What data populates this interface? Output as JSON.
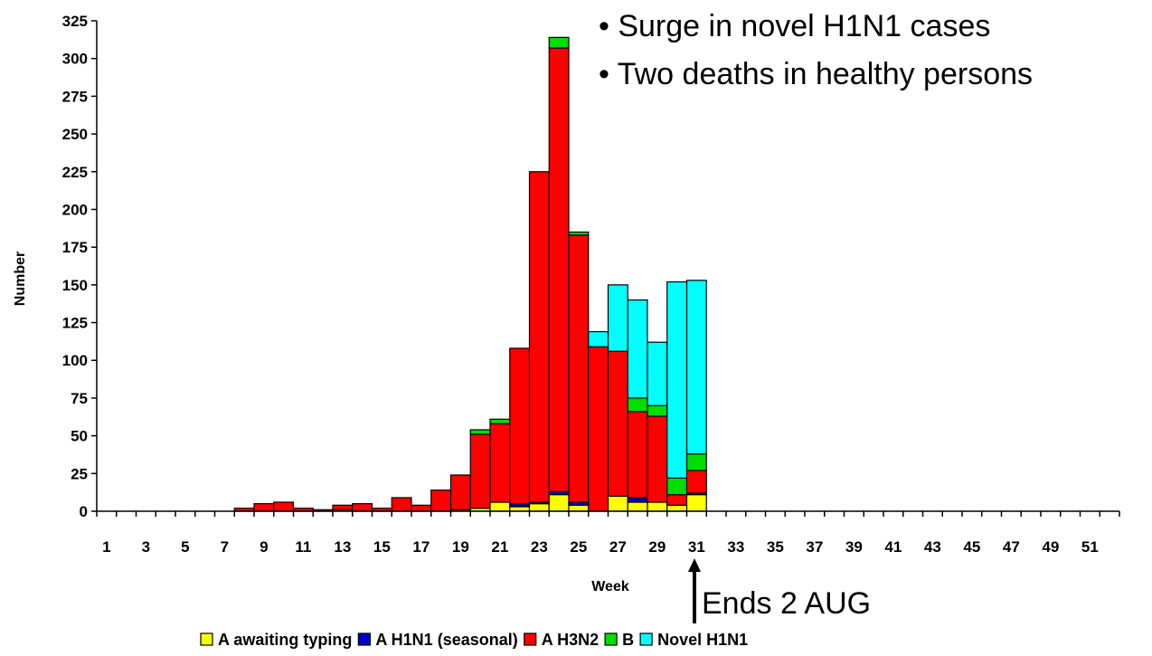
{
  "chart_data": {
    "type": "bar",
    "stacked": true,
    "ylabel": "Number",
    "xlabel": "Week",
    "ylim": [
      0,
      325
    ],
    "y_ticks": [
      0,
      25,
      50,
      75,
      100,
      125,
      150,
      175,
      200,
      225,
      250,
      275,
      300,
      325
    ],
    "x_range": [
      1,
      52
    ],
    "x_tick_labels": [
      "1",
      "3",
      "5",
      "7",
      "9",
      "11",
      "13",
      "15",
      "17",
      "19",
      "21",
      "23",
      "25",
      "27",
      "29",
      "31",
      "33",
      "35",
      "37",
      "39",
      "41",
      "43",
      "45",
      "47",
      "49",
      "51"
    ],
    "grid": false,
    "legend_position": "bottom",
    "weeks": [
      8,
      9,
      10,
      11,
      12,
      13,
      14,
      15,
      16,
      17,
      18,
      19,
      20,
      21,
      22,
      23,
      24,
      25,
      26,
      27,
      28,
      29,
      30,
      31
    ],
    "series": [
      {
        "name": "A awaiting typing",
        "color": "#FFFF00",
        "values": [
          0,
          0,
          0,
          0,
          0,
          1,
          0,
          0,
          0,
          0,
          0,
          1,
          2,
          6,
          3,
          5,
          11,
          4,
          0,
          10,
          6,
          6,
          4,
          11
        ]
      },
      {
        "name": "A H1N1 (seasonal)",
        "color": "#0000CC",
        "values": [
          0,
          0,
          0,
          0,
          0,
          0,
          0,
          0,
          0,
          0,
          0,
          0,
          0,
          0,
          2,
          1,
          2,
          2,
          0,
          0,
          3,
          0,
          0,
          1
        ]
      },
      {
        "name": "A H3N2",
        "color": "#FF0000",
        "values": [
          2,
          5,
          6,
          2,
          1,
          3,
          5,
          2,
          9,
          4,
          14,
          23,
          49,
          52,
          103,
          219,
          294,
          177,
          109,
          96,
          57,
          57,
          7,
          15
        ]
      },
      {
        "name": "B",
        "color": "#00DD00",
        "values": [
          0,
          0,
          0,
          0,
          0,
          0,
          0,
          0,
          0,
          0,
          0,
          0,
          3,
          3,
          0,
          0,
          7,
          2,
          0,
          0,
          9,
          7,
          11,
          11
        ]
      },
      {
        "name": "Novel H1N1",
        "color": "#00FFFF",
        "values": [
          0,
          0,
          0,
          0,
          0,
          0,
          0,
          0,
          0,
          0,
          0,
          0,
          0,
          0,
          0,
          0,
          0,
          0,
          10,
          44,
          65,
          42,
          130,
          115
        ]
      }
    ],
    "annotations": [
      "• Surge in novel H1N1 cases",
      "• Two deaths in healthy persons",
      "Ends 2 AUG"
    ]
  }
}
